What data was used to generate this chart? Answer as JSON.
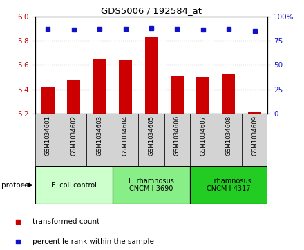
{
  "title": "GDS5006 / 192584_at",
  "samples": [
    "GSM1034601",
    "GSM1034602",
    "GSM1034603",
    "GSM1034604",
    "GSM1034605",
    "GSM1034606",
    "GSM1034607",
    "GSM1034608",
    "GSM1034609"
  ],
  "transformed_counts": [
    5.42,
    5.48,
    5.65,
    5.64,
    5.83,
    5.51,
    5.5,
    5.53,
    5.22
  ],
  "percentile_ranks": [
    87,
    86,
    87,
    87,
    88,
    87,
    86,
    87,
    85
  ],
  "ylim_left": [
    5.2,
    6.0
  ],
  "ylim_right": [
    0,
    100
  ],
  "yticks_left": [
    5.2,
    5.4,
    5.6,
    5.8,
    6.0
  ],
  "yticks_right": [
    0,
    25,
    50,
    75,
    100
  ],
  "bar_color": "#cc0000",
  "dot_color": "#1111cc",
  "protocol_groups": [
    {
      "label": "E. coli control",
      "start": 0,
      "end": 3,
      "color": "#ccffcc"
    },
    {
      "label": "L. rhamnosus\nCNCM I-3690",
      "start": 3,
      "end": 6,
      "color": "#88ee88"
    },
    {
      "label": "L. rhamnosus\nCNCM I-4317",
      "start": 6,
      "end": 9,
      "color": "#22cc22"
    }
  ],
  "legend_items": [
    {
      "label": "transformed count",
      "color": "#cc0000"
    },
    {
      "label": "percentile rank within the sample",
      "color": "#1111cc"
    }
  ],
  "protocol_label": "protocol",
  "tick_label_color_left": "#cc0000",
  "tick_label_color_right": "#1111cc",
  "sample_box_color": "#d3d3d3",
  "gridline_color": "#000000",
  "gridline_style": ":"
}
